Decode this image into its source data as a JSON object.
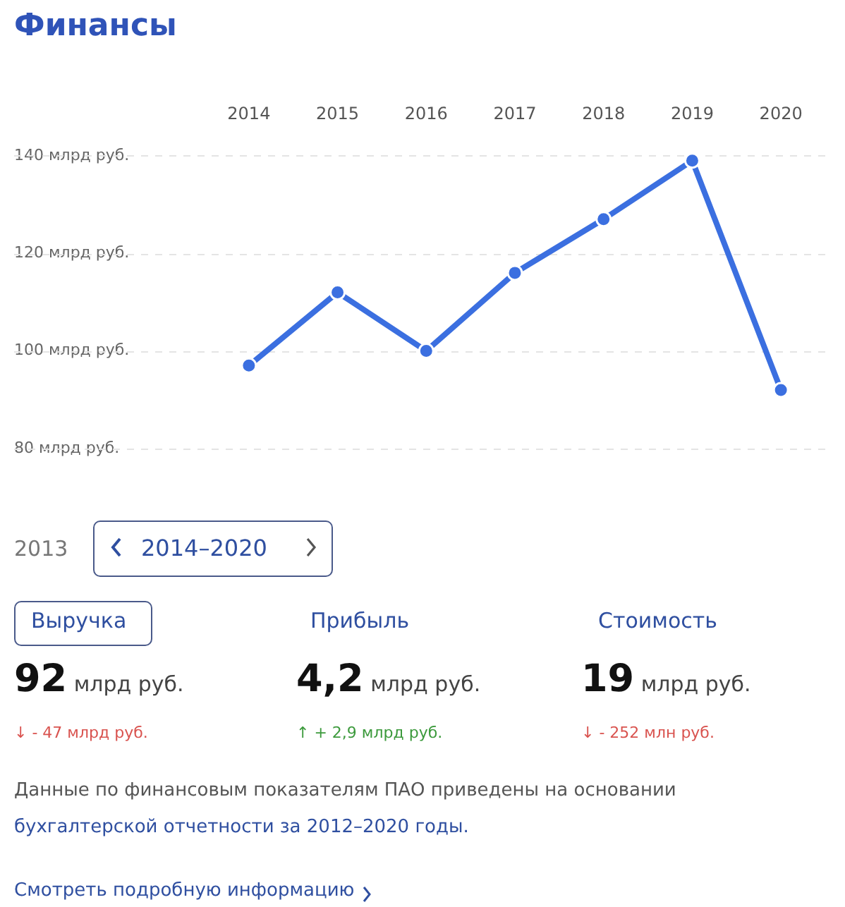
{
  "chart_data": {
    "type": "line",
    "title": "Финансы",
    "categories": [
      "2014",
      "2015",
      "2016",
      "2017",
      "2018",
      "2019",
      "2020"
    ],
    "series": [
      {
        "color": "#3b6fe0",
        "values": [
          97,
          112,
          100,
          116,
          127,
          139,
          92
        ]
      }
    ],
    "ylim": [
      80,
      140
    ],
    "yticks": [
      {
        "value": 80,
        "label": "80 млрд руб."
      },
      {
        "value": 100,
        "label": "100 млрд руб."
      },
      {
        "value": 120,
        "label": "120 млрд руб."
      },
      {
        "value": 140,
        "label": "140 млрд руб."
      }
    ],
    "grid": "y",
    "legend": false,
    "marker": "circle",
    "line_style": "solid",
    "annotations": [
      "2013",
      "2014–2020",
      "Выручка",
      "Прибыль",
      "Стоимость",
      "92 млрд руб.",
      "4,2 млрд руб.",
      "19 млрд руб.",
      "↓ - 47 млрд руб.",
      "↑ + 2,9 млрд руб.",
      "↓ - 252 млн руб.",
      "Данные по финансовым показателям ПАО приведены на основании",
      "бухгалтерской отчетности за 2012–2020 годы.",
      "Смотреть подробную информацию"
    ]
  }
}
